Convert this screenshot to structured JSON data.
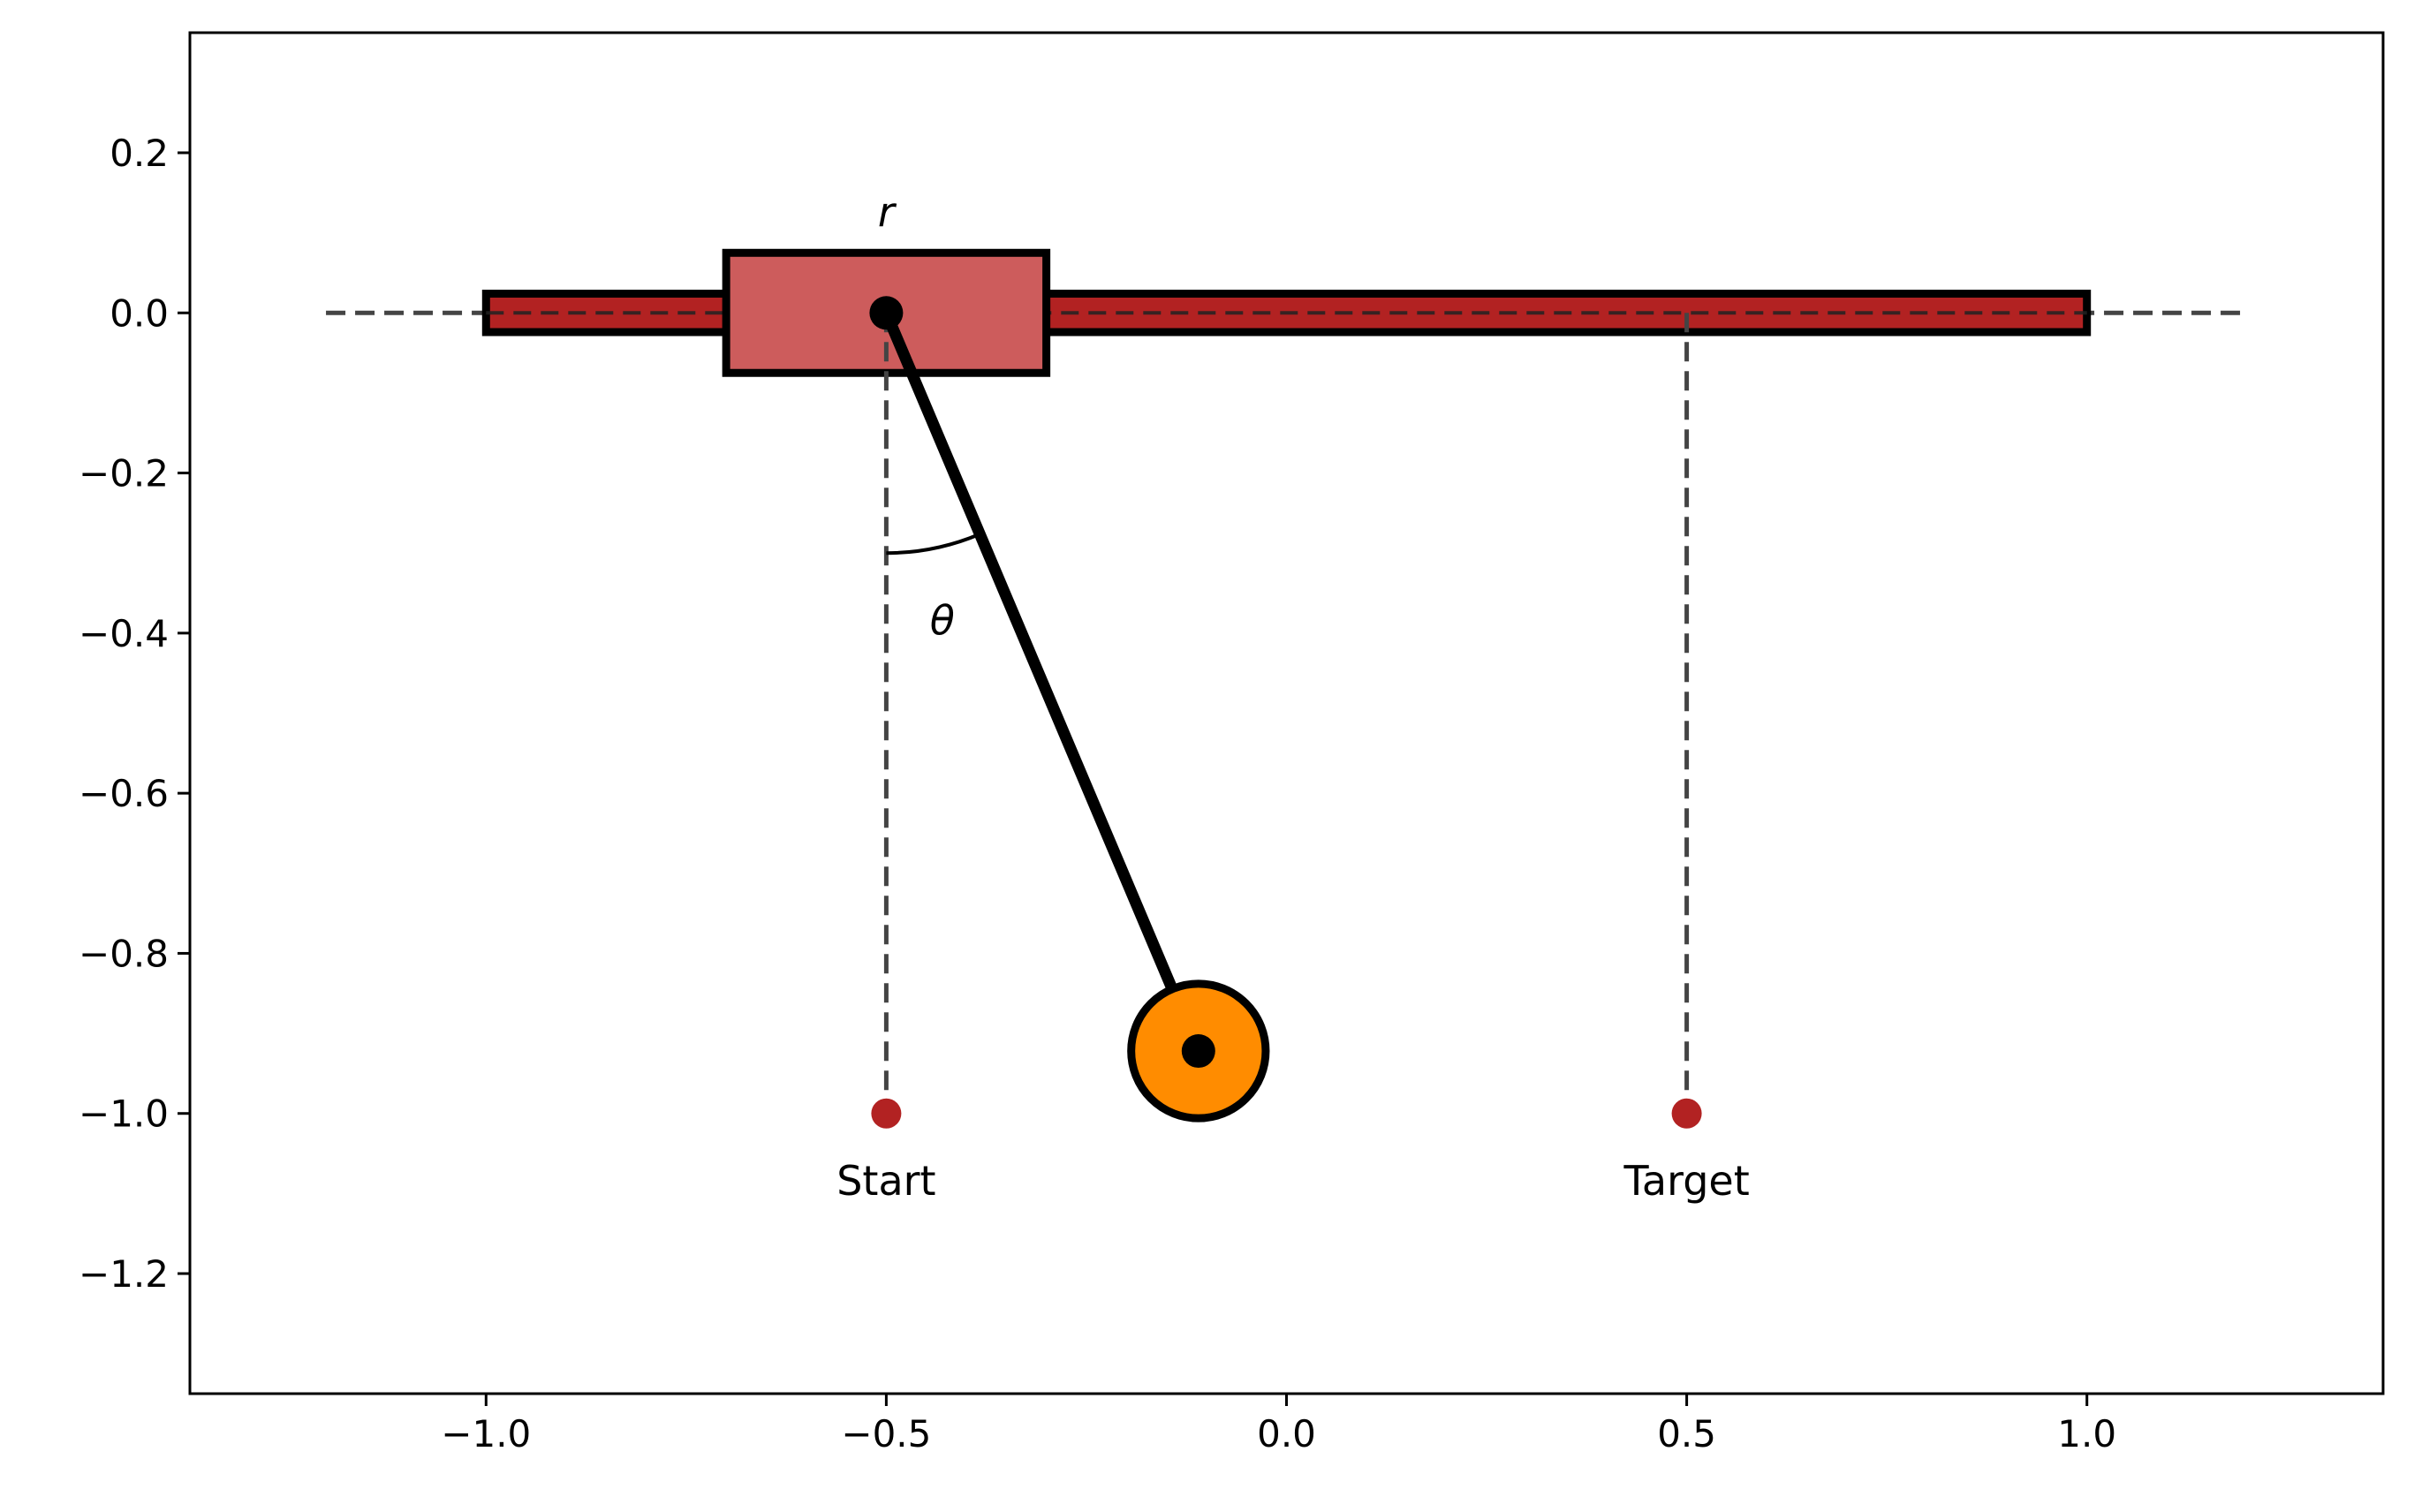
{
  "chart_data": {
    "type": "diagram",
    "title": "",
    "xlabel": "",
    "ylabel": "",
    "xlim": [
      -1.37,
      1.37
    ],
    "ylim": [
      -1.35,
      0.35
    ],
    "xticks": [
      -1.0,
      -0.5,
      0.0,
      0.5,
      1.0
    ],
    "xtick_labels": [
      "−1.0",
      "−0.5",
      "0.0",
      "0.5",
      "1.0"
    ],
    "yticks": [
      0.2,
      0.0,
      -0.2,
      -0.4,
      -0.6,
      -0.8,
      -1.0,
      -1.2
    ],
    "ytick_labels": [
      "0.2",
      "0.0",
      "−0.2",
      "−0.4",
      "−0.6",
      "−0.8",
      "−1.0",
      "−1.2"
    ],
    "grid": false,
    "track": {
      "x_from": -1.0,
      "x_to": 1.0,
      "half_height": 0.024,
      "color": "#b22222"
    },
    "rail_line": {
      "x_from": -1.2,
      "x_to": 1.2,
      "y": 0.0,
      "color": "#444444"
    },
    "cart": {
      "center_x": -0.5,
      "center_y": 0.0,
      "width": 0.4,
      "height": 0.15,
      "color": "#cd5c5c"
    },
    "pendulum": {
      "pivot": [
        -0.5,
        0.0
      ],
      "bob": [
        -0.11,
        -0.922
      ],
      "bob_radius": 0.084,
      "bob_color": "#ff8c00"
    },
    "angle_arc": {
      "radius": 0.3
    },
    "markers": [
      {
        "label": "Start",
        "x": -0.5,
        "y": -1.0,
        "color": "#b22222"
      },
      {
        "label": "Target",
        "x": 0.5,
        "y": -1.0,
        "color": "#b22222"
      }
    ],
    "label_r": "r",
    "label_theta": "θ"
  }
}
